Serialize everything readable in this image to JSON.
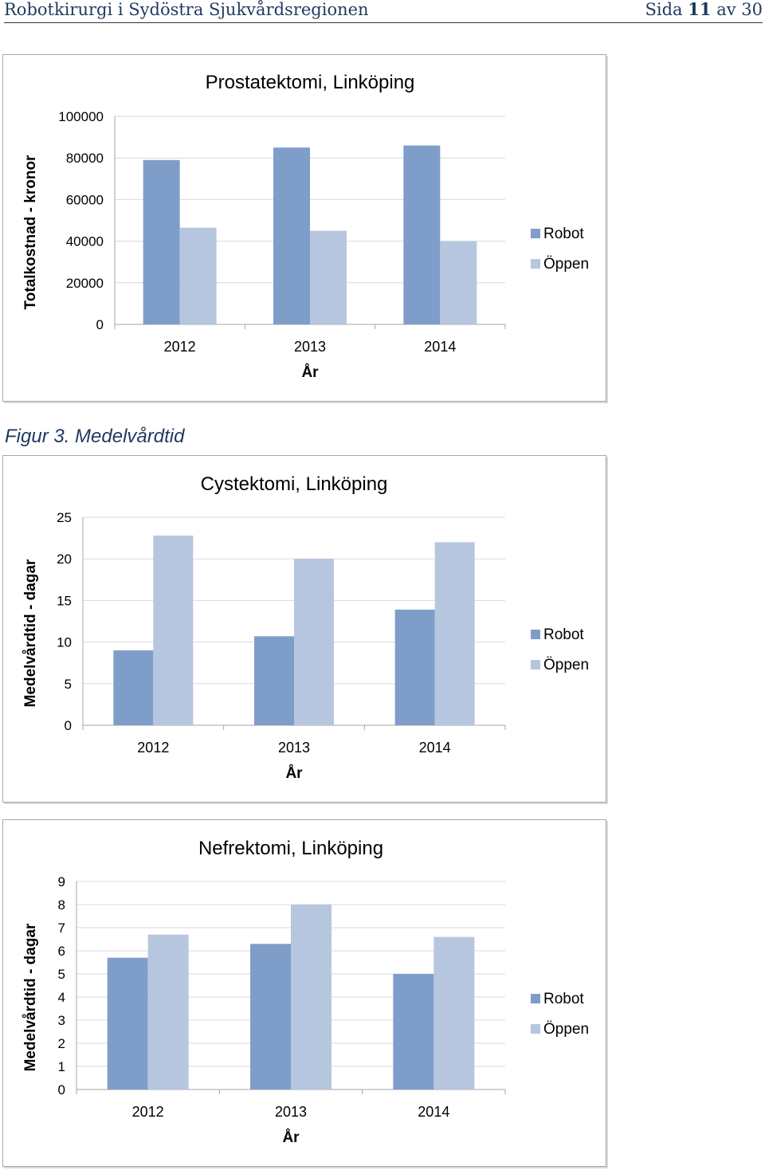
{
  "header": {
    "title": "Robotkirurgi i Sydöstra Sjukvårdsregionen",
    "page_prefix": "Sida",
    "page_number": "11",
    "page_of": "av",
    "page_total": "30"
  },
  "caption": "Figur 3. Medelvårdtid",
  "colors": {
    "robot": "#7f9dc9",
    "oppen": "#b7c6df",
    "grid": "#d9d9d9",
    "axis": "#a6a6a6"
  },
  "chart_data": [
    {
      "type": "bar",
      "title": "Prostatektomi, Linköping",
      "ylabel": "Totalkostnad - kronor",
      "xlabel": "År",
      "categories": [
        "2012",
        "2013",
        "2014"
      ],
      "series": [
        {
          "name": "Robot",
          "values": [
            79000,
            85000,
            86000
          ]
        },
        {
          "name": "Öppen",
          "values": [
            46500,
            45000,
            40000
          ]
        }
      ],
      "ylim": [
        0,
        100000
      ],
      "yticks": [
        0,
        20000,
        40000,
        60000,
        80000,
        100000
      ],
      "grid": true,
      "legend": "right"
    },
    {
      "type": "bar",
      "title": "Cystektomi, Linköping",
      "ylabel": "Medelvårdtid - dagar",
      "xlabel": "År",
      "categories": [
        "2012",
        "2013",
        "2014"
      ],
      "series": [
        {
          "name": "Robot",
          "values": [
            9,
            10.7,
            13.9
          ]
        },
        {
          "name": "Öppen",
          "values": [
            22.8,
            20,
            22
          ]
        }
      ],
      "ylim": [
        0,
        25
      ],
      "yticks": [
        0,
        5,
        10,
        15,
        20,
        25
      ],
      "grid": true,
      "legend": "right"
    },
    {
      "type": "bar",
      "title": "Nefrektomi, Linköping",
      "ylabel": "Medelvårdtid - dagar",
      "xlabel": "År",
      "categories": [
        "2012",
        "2013",
        "2014"
      ],
      "series": [
        {
          "name": "Robot",
          "values": [
            5.7,
            6.3,
            5
          ]
        },
        {
          "name": "Öppen",
          "values": [
            6.7,
            8,
            6.6
          ]
        }
      ],
      "ylim": [
        0,
        9
      ],
      "yticks": [
        0,
        1,
        2,
        3,
        4,
        5,
        6,
        7,
        8,
        9
      ],
      "grid": true,
      "legend": "right"
    }
  ]
}
